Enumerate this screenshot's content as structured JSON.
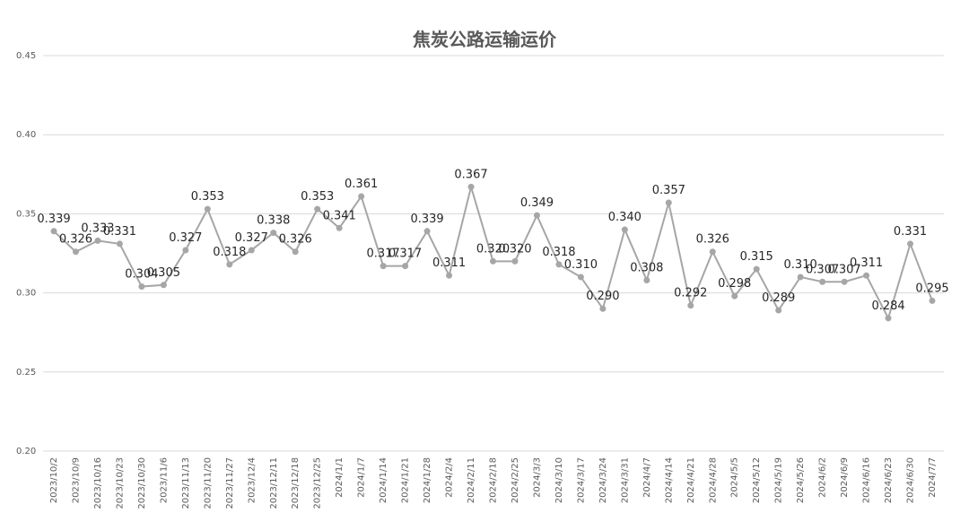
{
  "chart_data": {
    "type": "line",
    "title": "焦炭公路运输运价",
    "xlabel": "",
    "ylabel": "",
    "ylim": [
      0.2,
      0.45
    ],
    "yticks": [
      "0.20",
      "0.25",
      "0.30",
      "0.35",
      "0.40",
      "0.45"
    ],
    "grid": true,
    "legend": "none",
    "colors": {
      "line": "#a6a6a6",
      "marker": "#a6a6a6",
      "grid": "#d9d9d9",
      "text": "#595959"
    },
    "categories": [
      "2023/10/2",
      "2023/10/9",
      "2023/10/16",
      "2023/10/23",
      "2023/10/30",
      "2023/11/6",
      "2023/11/13",
      "2023/11/20",
      "2023/11/27",
      "2023/12/4",
      "2023/12/11",
      "2023/12/18",
      "2023/12/25",
      "2024/1/1",
      "2024/1/7",
      "2024/1/14",
      "2024/1/21",
      "2024/1/28",
      "2024/2/4",
      "2024/2/11",
      "2024/2/18",
      "2024/2/25",
      "2024/3/3",
      "2024/3/10",
      "2024/3/17",
      "2024/3/24",
      "2024/3/31",
      "2024/4/7",
      "2024/4/14",
      "2024/4/21",
      "2024/4/28",
      "2024/5/5",
      "2024/5/12",
      "2024/5/19",
      "2024/5/26",
      "2024/6/2",
      "2024/6/9",
      "2024/6/16",
      "2024/6/23",
      "2024/6/30",
      "2024/7/7"
    ],
    "values": [
      0.339,
      0.326,
      0.333,
      0.331,
      0.304,
      0.305,
      0.327,
      0.353,
      0.318,
      0.327,
      0.338,
      0.326,
      0.353,
      0.341,
      0.361,
      0.317,
      0.317,
      0.339,
      0.311,
      0.367,
      0.32,
      0.32,
      0.349,
      0.318,
      0.31,
      0.29,
      0.34,
      0.308,
      0.357,
      0.292,
      0.326,
      0.298,
      0.315,
      0.289,
      0.31,
      0.307,
      0.307,
      0.311,
      0.284,
      0.331,
      0.295
    ],
    "labels": [
      "0.339",
      "0.326",
      "0.333",
      "0.331",
      "0.304",
      "0.305",
      "0.327",
      "0.353",
      "0.318",
      "0.327",
      "0.338",
      "0.326",
      "0.353",
      "0.341",
      "0.361",
      "0.317",
      "0.317",
      "0.339",
      "0.311",
      "0.367",
      "0.320",
      "0.320",
      "0.349",
      "0.318",
      "0.310",
      "0.290",
      "0.340",
      "0.308",
      "0.357",
      "0.292",
      "0.326",
      "0.298",
      "0.315",
      "0.289",
      "0.310",
      "0.307",
      "0.307",
      "0.311",
      "0.284",
      "0.331",
      "0.295"
    ]
  }
}
